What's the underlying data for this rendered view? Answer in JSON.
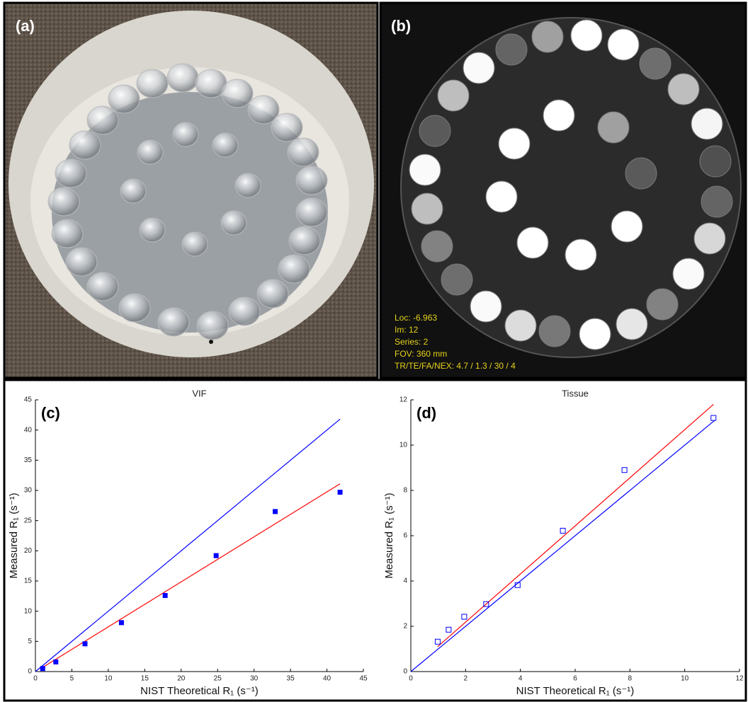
{
  "panels": [
    {
      "label": "(a)"
    },
    {
      "label": "(b)",
      "annotations": [
        "Loc: -6.963",
        "Im: 12",
        "Series: 2",
        "FOV:  360 mm",
        "TR/TE/FA/NEX:  4.7 / 1.3 / 30 / 4"
      ]
    }
  ],
  "chart_data": [
    {
      "type": "scatter",
      "panel_label": "(c)",
      "title": "VIF",
      "x_label": "NIST Theoretical R₁ (s⁻¹)",
      "y_label": "Measured R₁ (s⁻¹)",
      "xlim": [
        0,
        45
      ],
      "xticks": [
        0,
        5,
        10,
        15,
        20,
        25,
        30,
        35,
        40,
        45
      ],
      "ylim": [
        0,
        45
      ],
      "yticks": [
        0,
        5,
        10,
        15,
        20,
        25,
        30,
        35,
        40,
        45
      ],
      "points": {
        "color": "#0000ff",
        "filled": true,
        "x": [
          1,
          2.8,
          6.8,
          11.8,
          17.8,
          24.8,
          32.9,
          41.8
        ],
        "values": [
          0.5,
          1.6,
          4.6,
          8.1,
          12.6,
          19.2,
          26.5,
          29.7
        ]
      },
      "lines": [
        {
          "color": "#0000ff",
          "x": [
            0,
            41.8
          ],
          "values": [
            0,
            41.8
          ]
        },
        {
          "color": "#ff0000",
          "x": [
            1,
            41.8
          ],
          "values": [
            0.7,
            31.1
          ]
        }
      ]
    },
    {
      "type": "scatter",
      "panel_label": "(d)",
      "title": "Tissue",
      "x_label": "NIST Theoretical R₁ (s⁻¹)",
      "y_label": "Measured R₁ (s⁻¹)",
      "xlim": [
        0,
        12
      ],
      "xticks": [
        0,
        2,
        4,
        6,
        8,
        10,
        12
      ],
      "ylim": [
        0,
        12
      ],
      "yticks": [
        0,
        2,
        4,
        6,
        8,
        10,
        12
      ],
      "points": {
        "color": "#0000ff",
        "filled": false,
        "x": [
          0.98,
          1.38,
          1.95,
          2.75,
          3.9,
          5.55,
          7.8,
          11.05
        ],
        "values": [
          1.32,
          1.85,
          2.42,
          2.98,
          3.82,
          6.22,
          8.9,
          11.2
        ]
      },
      "lines": [
        {
          "color": "#0000ff",
          "x": [
            0,
            11.1
          ],
          "values": [
            0,
            11.1
          ]
        },
        {
          "color": "#ff0000",
          "x": [
            0.98,
            11.05
          ],
          "values": [
            1.1,
            11.8
          ]
        }
      ]
    }
  ]
}
